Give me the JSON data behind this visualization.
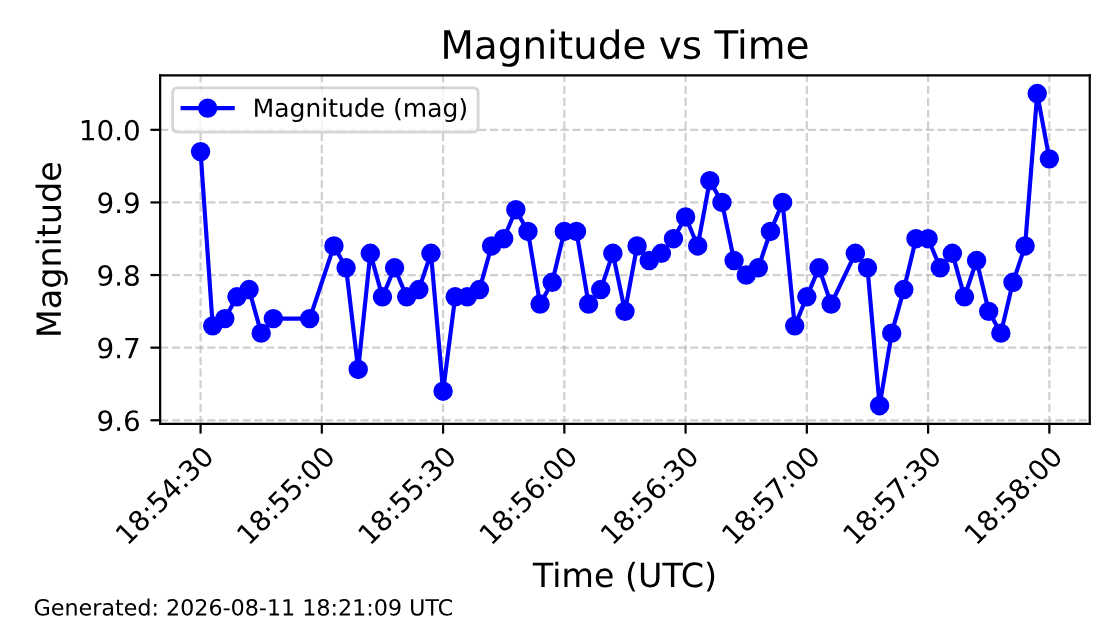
{
  "chart_data": {
    "type": "line",
    "title": "Magnitude vs Time",
    "xlabel": "Time (UTC)",
    "ylabel": "Magnitude",
    "annotations": [
      "Generated: 2026-08-11 18:21:09 UTC"
    ],
    "x": [
      "2026-08-11T18:54:30",
      "2026-08-11T18:54:33",
      "2026-08-11T18:54:36",
      "2026-08-11T18:54:39",
      "2026-08-11T18:54:42",
      "2026-08-11T18:54:45",
      "2026-08-11T18:54:48",
      "2026-08-11T18:54:57",
      "2026-08-11T18:55:03",
      "2026-08-11T18:55:06",
      "2026-08-11T18:55:09",
      "2026-08-11T18:55:12",
      "2026-08-11T18:55:15",
      "2026-08-11T18:55:18",
      "2026-08-11T18:55:21",
      "2026-08-11T18:55:24",
      "2026-08-11T18:55:27",
      "2026-08-11T18:55:30",
      "2026-08-11T18:55:33",
      "2026-08-11T18:55:36",
      "2026-08-11T18:55:39",
      "2026-08-11T18:55:42",
      "2026-08-11T18:55:45",
      "2026-08-11T18:55:48",
      "2026-08-11T18:55:51",
      "2026-08-11T18:55:54",
      "2026-08-11T18:55:57",
      "2026-08-11T18:56:00",
      "2026-08-11T18:56:03",
      "2026-08-11T18:56:06",
      "2026-08-11T18:56:09",
      "2026-08-11T18:56:12",
      "2026-08-11T18:56:15",
      "2026-08-11T18:56:18",
      "2026-08-11T18:56:21",
      "2026-08-11T18:56:24",
      "2026-08-11T18:56:27",
      "2026-08-11T18:56:30",
      "2026-08-11T18:56:33",
      "2026-08-11T18:56:36",
      "2026-08-11T18:56:39",
      "2026-08-11T18:56:42",
      "2026-08-11T18:56:45",
      "2026-08-11T18:56:48",
      "2026-08-11T18:56:51",
      "2026-08-11T18:56:54",
      "2026-08-11T18:56:57",
      "2026-08-11T18:57:00",
      "2026-08-11T18:57:03",
      "2026-08-11T18:57:06",
      "2026-08-11T18:57:12",
      "2026-08-11T18:57:15",
      "2026-08-11T18:57:18",
      "2026-08-11T18:57:21",
      "2026-08-11T18:57:24",
      "2026-08-11T18:57:27",
      "2026-08-11T18:57:30",
      "2026-08-11T18:57:33",
      "2026-08-11T18:57:36",
      "2026-08-11T18:57:39",
      "2026-08-11T18:57:42",
      "2026-08-11T18:57:45",
      "2026-08-11T18:57:48",
      "2026-08-11T18:57:51",
      "2026-08-11T18:57:54",
      "2026-08-11T18:57:57",
      "2026-08-11T18:58:00"
    ],
    "series": [
      {
        "name": "Magnitude (mag)",
        "color": "#0000ff",
        "values": [
          9.97,
          9.73,
          9.74,
          9.77,
          9.78,
          9.72,
          9.74,
          9.74,
          9.84,
          9.81,
          9.67,
          9.83,
          9.77,
          9.81,
          9.77,
          9.78,
          9.83,
          9.64,
          9.77,
          9.77,
          9.78,
          9.84,
          9.85,
          9.89,
          9.86,
          9.76,
          9.79,
          9.86,
          9.86,
          9.76,
          9.78,
          9.83,
          9.75,
          9.84,
          9.82,
          9.83,
          9.85,
          9.88,
          9.84,
          9.93,
          9.9,
          9.82,
          9.8,
          9.81,
          9.86,
          9.9,
          9.73,
          9.77,
          9.81,
          9.76,
          9.83,
          9.81,
          9.62,
          9.72,
          9.78,
          9.85,
          9.85,
          9.81,
          9.83,
          9.77,
          9.82,
          9.75,
          9.72,
          9.79,
          9.84,
          10.05,
          9.96
        ]
      }
    ],
    "xlim": [
      "2026-08-11T18:54:20",
      "2026-08-11T18:58:10"
    ],
    "xticks": [
      {
        "value": "2026-08-11T18:54:30",
        "label": "18:54:30"
      },
      {
        "value": "2026-08-11T18:55:00",
        "label": "18:55:00"
      },
      {
        "value": "2026-08-11T18:55:30",
        "label": "18:55:30"
      },
      {
        "value": "2026-08-11T18:56:00",
        "label": "18:56:00"
      },
      {
        "value": "2026-08-11T18:56:30",
        "label": "18:56:30"
      },
      {
        "value": "2026-08-11T18:57:00",
        "label": "18:57:00"
      },
      {
        "value": "2026-08-11T18:57:30",
        "label": "18:57:30"
      },
      {
        "value": "2026-08-11T18:58:00",
        "label": "18:58:00"
      }
    ],
    "ylim": [
      9.595,
      10.075
    ],
    "yticks": [
      9.6,
      9.7,
      9.8,
      9.9,
      {
        "value": 10,
        "label": "10.0"
      }
    ],
    "grid": true,
    "legend": "top left",
    "marker": "circle",
    "line_style": "solid"
  }
}
